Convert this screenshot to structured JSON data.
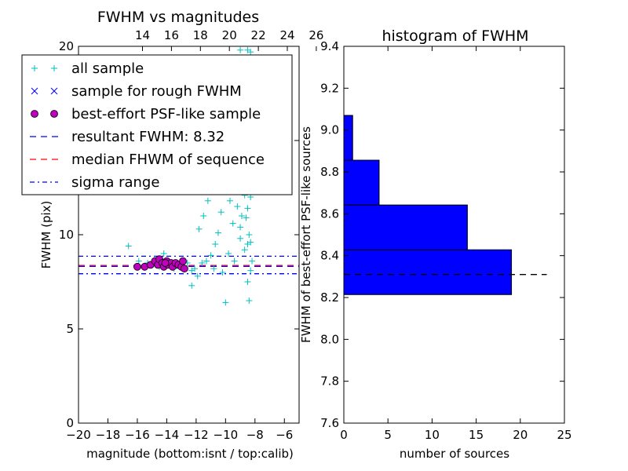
{
  "chart_data": [
    {
      "type": "scatter",
      "title": "FWHM vs magnitudes",
      "xlabel": "magnitude (bottom:isnt / top:calib)",
      "ylabel": "FWHM (pix)",
      "xlim": [
        -20,
        -5
      ],
      "ylim": [
        0,
        20
      ],
      "x_ticks": [
        "−20",
        "−18",
        "−16",
        "−14",
        "−12",
        "−10",
        "−8",
        "−6"
      ],
      "x_tick_values": [
        -20,
        -18,
        -16,
        -14,
        -12,
        -10,
        -8,
        -6
      ],
      "top_ticks": [
        "14",
        "16",
        "18",
        "20",
        "22",
        "24",
        "26"
      ],
      "top_tick_values": [
        -15.65,
        -13.68,
        -11.71,
        -9.74,
        -7.77,
        -5.8,
        -3.83
      ],
      "y_ticks": [
        "0",
        "5",
        "10",
        "15",
        "20"
      ],
      "y_tick_values": [
        0,
        5,
        10,
        15,
        20
      ],
      "legend_position": "top-left",
      "legend": [
        {
          "label": "all sample",
          "marker": "+",
          "color": "#00bfbf"
        },
        {
          "label": "sample for rough FWHM",
          "marker": "x",
          "color": "#0000ff"
        },
        {
          "label": "best-effort PSF-like sample",
          "marker": "o",
          "color": "#bf00bf"
        },
        {
          "label": "resultant FWHM: 8.32",
          "line": "dashed",
          "color": "#0000ff"
        },
        {
          "label": "median FHWM of sequence",
          "line": "dashed",
          "color": "#ff0000"
        },
        {
          "label": "sigma range",
          "line": "dashdot",
          "color": "#0000ff"
        }
      ],
      "hlines": [
        {
          "name": "resultant FWHM",
          "y": 8.32,
          "style": "dashed",
          "color": "#0000ff"
        },
        {
          "name": "median FHWM of sequence",
          "y": 8.37,
          "style": "dashed",
          "color": "#ff0000"
        },
        {
          "name": "sigma upper",
          "y": 8.86,
          "style": "dashdot",
          "color": "#0000ff"
        },
        {
          "name": "sigma lower",
          "y": 7.93,
          "style": "dashdot",
          "color": "#0000ff"
        }
      ],
      "series": [
        {
          "name": "all sample",
          "points": [
            [
              -16.6,
              9.4
            ],
            [
              -15.9,
              8.6
            ],
            [
              -15.3,
              8.5
            ],
            [
              -14.8,
              8.7
            ],
            [
              -14.5,
              8.3
            ],
            [
              -14.2,
              9.0
            ],
            [
              -13.8,
              8.4
            ],
            [
              -13.5,
              8.2
            ],
            [
              -13.0,
              8.3
            ],
            [
              -12.6,
              8.5
            ],
            [
              -12.3,
              8.1
            ],
            [
              -12.1,
              8.2
            ],
            [
              -12.3,
              7.3
            ],
            [
              -11.9,
              7.8
            ],
            [
              -11.6,
              8.5
            ],
            [
              -11.3,
              8.6
            ],
            [
              -11.0,
              8.9
            ],
            [
              -10.8,
              8.2
            ],
            [
              -11.5,
              11.0
            ],
            [
              -11.8,
              10.3
            ],
            [
              -11.2,
              11.8
            ],
            [
              -11.9,
              12.3
            ],
            [
              -11.0,
              12.6
            ],
            [
              -11.4,
              13.3
            ],
            [
              -10.7,
              9.5
            ],
            [
              -10.5,
              10.1
            ],
            [
              -10.3,
              11.2
            ],
            [
              -10.2,
              8.0
            ],
            [
              -10.0,
              6.4
            ],
            [
              -9.8,
              9.0
            ],
            [
              -9.6,
              12.8
            ],
            [
              -9.5,
              10.6
            ],
            [
              -9.3,
              14.0
            ],
            [
              -9.2,
              11.5
            ],
            [
              -9.0,
              9.8
            ],
            [
              -8.9,
              13.2
            ],
            [
              -8.8,
              15.1
            ],
            [
              -8.7,
              12.1
            ],
            [
              -8.6,
              10.9
            ],
            [
              -8.5,
              9.5
            ],
            [
              -8.5,
              7.5
            ],
            [
              -8.4,
              6.5
            ],
            [
              -8.3,
              8.1
            ],
            [
              -9.9,
              13.6
            ],
            [
              -9.7,
              11.8
            ],
            [
              -9.4,
              8.6
            ],
            [
              -9.1,
              13.9
            ],
            [
              -9.0,
              10.4
            ],
            [
              -8.9,
              11.0
            ],
            [
              -8.8,
              13.7
            ],
            [
              -8.7,
              9.2
            ],
            [
              -8.6,
              14.6
            ],
            [
              -8.6,
              12.5
            ],
            [
              -8.5,
              11.4
            ],
            [
              -8.4,
              13.0
            ],
            [
              -8.4,
              10.0
            ],
            [
              -8.3,
              12.0
            ],
            [
              -8.3,
              9.6
            ],
            [
              -8.2,
              14.2
            ],
            [
              -8.2,
              8.6
            ],
            [
              -9.2,
              19.4
            ],
            [
              -9.0,
              19.8
            ],
            [
              -8.5,
              19.8
            ],
            [
              -8.8,
              18.6
            ],
            [
              -8.3,
              19.7
            ],
            [
              -9.1,
              17.8
            ]
          ]
        },
        {
          "name": "best-effort PSF-like sample",
          "points": [
            [
              -16.0,
              8.3
            ],
            [
              -15.5,
              8.3
            ],
            [
              -15.1,
              8.4
            ],
            [
              -14.8,
              8.6
            ],
            [
              -14.6,
              8.4
            ],
            [
              -14.5,
              8.7
            ],
            [
              -14.3,
              8.5
            ],
            [
              -14.2,
              8.3
            ],
            [
              -14.0,
              8.6
            ],
            [
              -13.9,
              8.4
            ],
            [
              -13.7,
              8.5
            ],
            [
              -13.6,
              8.3
            ],
            [
              -13.4,
              8.5
            ],
            [
              -13.2,
              8.4
            ],
            [
              -13.0,
              8.3
            ],
            [
              -12.9,
              8.6
            ],
            [
              -12.8,
              8.2
            ],
            [
              -14.1,
              8.5
            ]
          ]
        }
      ]
    },
    {
      "type": "bar",
      "orientation": "horizontal",
      "title": "histogram of FWHM",
      "xlabel": "number of sources",
      "ylabel": "FWHM of best-effort PSF-like sources",
      "xlim": [
        0,
        25
      ],
      "ylim": [
        7.6,
        9.4
      ],
      "x_ticks": [
        "0",
        "5",
        "10",
        "15",
        "20",
        "25"
      ],
      "x_tick_values": [
        0,
        5,
        10,
        15,
        20,
        25
      ],
      "y_ticks": [
        "7.6",
        "7.8",
        "8.0",
        "8.2",
        "8.4",
        "8.6",
        "8.8",
        "9.0",
        "9.2",
        "9.4"
      ],
      "y_tick_values": [
        7.6,
        7.8,
        8.0,
        8.2,
        8.4,
        8.6,
        8.8,
        9.0,
        9.2,
        9.4
      ],
      "bins": [
        {
          "low": 8.214,
          "high": 8.428,
          "count": 19
        },
        {
          "low": 8.428,
          "high": 8.642,
          "count": 14
        },
        {
          "low": 8.642,
          "high": 8.856,
          "count": 4
        },
        {
          "low": 8.856,
          "high": 9.07,
          "count": 1
        }
      ],
      "bar_color": "#0000ff",
      "hline": {
        "y": 8.31,
        "x_end": 23,
        "style": "dashed",
        "color": "#000000"
      }
    }
  ]
}
